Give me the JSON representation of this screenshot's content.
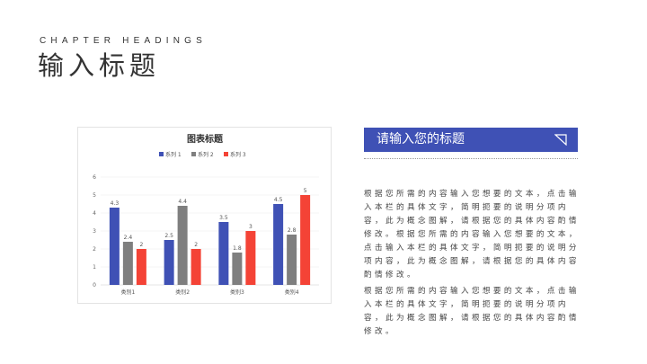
{
  "header": {
    "chapter": "CHAPTER HEADINGS",
    "title": "输入标题"
  },
  "panel": {
    "title": "请输入您的标题",
    "icon": "triangle-corner-icon",
    "paragraphs": [
      "根据您所需的内容输入您想要的文本，点击输入本栏的具体文字，简明扼要的说明分项内容，此为概念图解，请根据您的具体内容酌情修改。根据您所需的内容输入您想要的文本，点击输入本栏的具体文字，简明扼要的说明分项内容，此为概念图解，请根据您的具体内容酌情修改。",
      "根据您所需的内容输入您想要的文本，点击输入本栏的具体文字，简明扼要的说明分项内容，此为概念图解，请根据您的具体内容酌情修改。"
    ]
  },
  "chart_data": {
    "type": "bar",
    "title": "图表标题",
    "xlabel": "",
    "ylabel": "",
    "categories": [
      "类别1",
      "类别2",
      "类别3",
      "类别4"
    ],
    "ylim": [
      0,
      6
    ],
    "yticks": [
      0,
      1,
      2,
      3,
      4,
      5,
      6
    ],
    "grid": true,
    "legend": "top",
    "series": [
      {
        "name": "系列 1",
        "color": "#3f51b5",
        "values": [
          4.3,
          2.5,
          3.5,
          4.5
        ]
      },
      {
        "name": "系列 2",
        "color": "#7f7f7f",
        "values": [
          2.4,
          4.4,
          1.8,
          2.8
        ]
      },
      {
        "name": "系列 3",
        "color": "#f44336",
        "values": [
          2,
          2,
          3,
          5
        ]
      }
    ]
  }
}
